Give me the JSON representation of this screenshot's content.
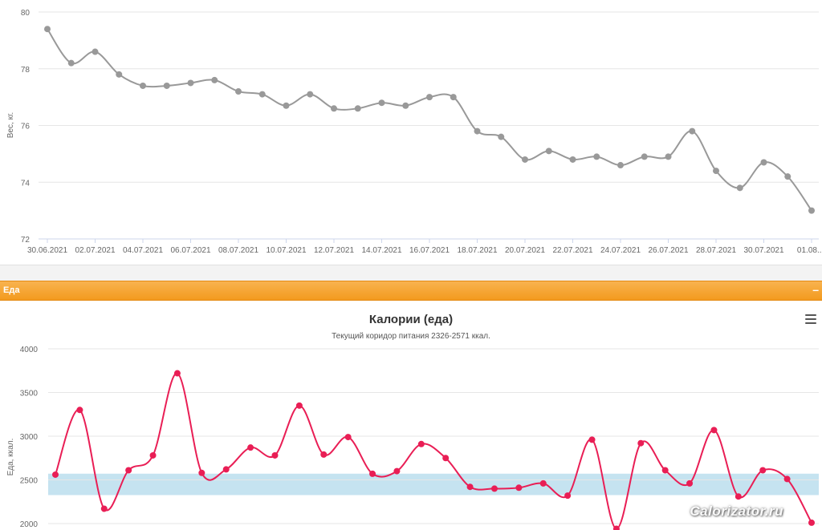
{
  "chart_data": [
    {
      "type": "line",
      "title": "",
      "xlabel": "",
      "ylabel": "Вес, кг.",
      "ylim": [
        72,
        80
      ],
      "yticks": [
        72,
        74,
        76,
        78,
        80
      ],
      "grid": true,
      "x_tick_labels": [
        "30.06.2021",
        "02.07.2021",
        "04.07.2021",
        "06.07.2021",
        "08.07.2021",
        "10.07.2021",
        "12.07.2021",
        "14.07.2021",
        "16.07.2021",
        "18.07.2021",
        "20.07.2021",
        "22.07.2021",
        "24.07.2021",
        "26.07.2021",
        "28.07.2021",
        "30.07.2021",
        "01.08...."
      ],
      "series": [
        {
          "color": "#999999",
          "values": [
            79.4,
            78.2,
            78.6,
            77.8,
            77.4,
            77.4,
            77.5,
            77.6,
            77.2,
            77.1,
            76.7,
            77.1,
            76.6,
            76.6,
            76.8,
            76.7,
            77.0,
            77.0,
            75.8,
            75.6,
            74.8,
            75.1,
            74.8,
            74.9,
            74.6,
            74.9,
            74.9,
            75.8,
            74.4,
            73.8,
            74.7,
            74.2,
            73.0
          ]
        }
      ]
    },
    {
      "type": "line",
      "title": "Калории (еда)",
      "subtitle": "Текущий коридор питания 2326-2571 ккал.",
      "xlabel": "",
      "ylabel": "Еда, ккал.",
      "ylim": [
        2000,
        4000
      ],
      "yticks": [
        2000,
        2500,
        3000,
        3500,
        4000
      ],
      "grid": true,
      "plot_band": {
        "from": 2326,
        "to": 2571,
        "color": "#c5e3f0"
      },
      "series": [
        {
          "color": "#e91e55",
          "values": [
            2560,
            3300,
            2170,
            2610,
            2780,
            3720,
            2580,
            2620,
            2870,
            2780,
            3350,
            2790,
            2990,
            2570,
            2600,
            2910,
            2750,
            2420,
            2400,
            2410,
            2460,
            2320,
            2960,
            1940,
            2920,
            2610,
            2460,
            3070,
            2310,
            2610,
            2510,
            2010
          ]
        }
      ]
    }
  ],
  "section": {
    "title": "Еда",
    "collapse_label": "–"
  },
  "watermark": "Calorizator.ru",
  "colors": {
    "weight_line": "#999999",
    "food_line": "#e91e55",
    "band": "#c5e3f0",
    "section_bar": "#f5a534"
  }
}
